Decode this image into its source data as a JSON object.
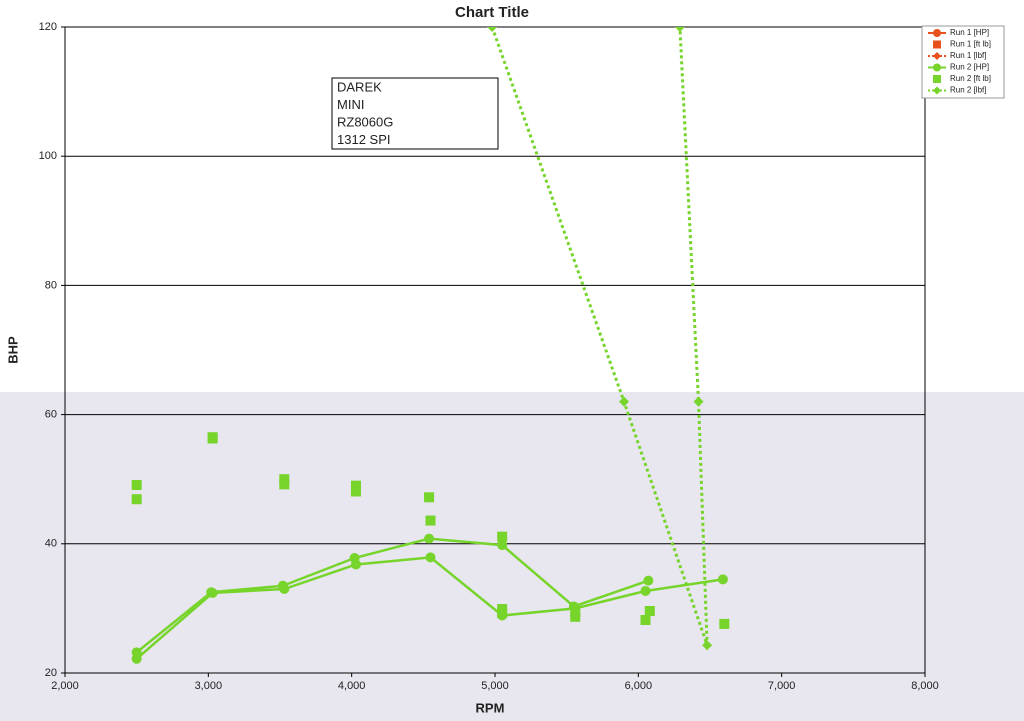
{
  "chart_data": {
    "type": "line",
    "title": "Chart Title",
    "x_label": "RPM",
    "y_label": "BHP",
    "annotation": [
      "DAREK",
      "MINI",
      "RZ8060G",
      "1312 SPI"
    ],
    "xlim": [
      2000,
      8000
    ],
    "xticks": [
      {
        "value": 2000,
        "label": "2,000"
      },
      {
        "value": 3000,
        "label": "3,000"
      },
      {
        "value": 4000,
        "label": "4,000"
      },
      {
        "value": 5000,
        "label": "5,000"
      },
      {
        "value": 6000,
        "label": "6,000"
      },
      {
        "value": 7000,
        "label": "7,000"
      },
      {
        "value": 8000,
        "label": "8,000"
      }
    ],
    "ylim": [
      20,
      120
    ],
    "yticks": [
      20,
      40,
      60,
      80,
      100,
      120
    ],
    "grid": true,
    "series": [
      {
        "name": "Run 1 [HP]",
        "color": "#e8501e",
        "marker": "circle",
        "line": "solid",
        "x": [],
        "values": []
      },
      {
        "name": "Run 1 [ft lb]",
        "color": "#e8501e",
        "marker": "square",
        "line": "none",
        "x": [],
        "values": []
      },
      {
        "name": "Run 1 [lbf]",
        "color": "#e8501e",
        "marker": "diamond",
        "line": "dotted",
        "x": [],
        "values": []
      },
      {
        "name": "Run 2 [HP]",
        "color": "#76d42a",
        "marker": "circle",
        "line": "solid",
        "x": [
          2500,
          3030,
          3530,
          4030,
          4550,
          5050,
          5560,
          6050,
          6590,
          null,
          2500,
          3020,
          3520,
          4020,
          4540,
          5050,
          5550,
          6070
        ],
        "values": [
          22.2,
          32.4,
          33,
          36.8,
          37.9,
          28.9,
          30,
          32.7,
          34.5,
          null,
          23.2,
          32.5,
          33.5,
          37.8,
          40.8,
          39.8,
          30.3,
          34.3
        ]
      },
      {
        "name": "Run 2 [ft lb]",
        "color": "#76d42a",
        "marker": "square",
        "line": "none",
        "x": [
          2500,
          2500,
          3030,
          3030,
          3530,
          3530,
          4030,
          4030,
          4540,
          4550,
          5050,
          5050,
          5050,
          5560,
          5560,
          6050,
          6080,
          6600
        ],
        "values": [
          49.1,
          46.9,
          56.5,
          56.3,
          50,
          49.2,
          49,
          48.1,
          47.2,
          43.6,
          41.1,
          29.9,
          29.3,
          29.5,
          28.7,
          28.2,
          29.6,
          27.6
        ]
      },
      {
        "name": "Run 2 [lbf]",
        "color": "#76d42a",
        "marker": "diamond",
        "line": "dotted",
        "x": [
          4980,
          5900,
          6480,
          6420,
          6290
        ],
        "values": [
          120,
          62,
          24.3,
          62,
          120
        ]
      }
    ]
  }
}
